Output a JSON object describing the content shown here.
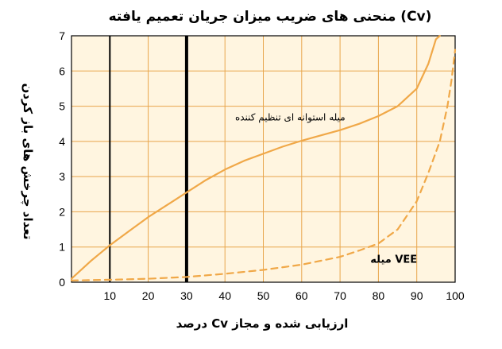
{
  "chart_data": {
    "type": "line",
    "title": "منحنی های ضریب میزان جریان تعمیم یافته (Cv)",
    "xlabel": "درصد Cv ارزیابی شده و مجاز",
    "ylabel": "تعداد چرخش های باز کردن",
    "xlim": [
      0,
      100
    ],
    "ylim": [
      0,
      7
    ],
    "x_ticks": [
      "10",
      "20",
      "30",
      "40",
      "50",
      "60",
      "70",
      "80",
      "90",
      "100"
    ],
    "y_ticks": [
      "0",
      "1",
      "2",
      "3",
      "4",
      "5",
      "6",
      "7"
    ],
    "grid": true,
    "background": "#FFF5E0",
    "grid_color": "#E8A54B",
    "vertical_markers": [
      {
        "x": 10,
        "width": 2
      },
      {
        "x": 30,
        "width": 4
      }
    ],
    "series": [
      {
        "name": "میله استوانه ای تنظیم کننده",
        "style": "solid",
        "color": "#F0A848",
        "points": [
          [
            0,
            0.1
          ],
          [
            2,
            0.3
          ],
          [
            5,
            0.6
          ],
          [
            10,
            1.05
          ],
          [
            15,
            1.45
          ],
          [
            20,
            1.85
          ],
          [
            25,
            2.2
          ],
          [
            30,
            2.55
          ],
          [
            35,
            2.9
          ],
          [
            40,
            3.2
          ],
          [
            45,
            3.45
          ],
          [
            50,
            3.65
          ],
          [
            55,
            3.85
          ],
          [
            60,
            4.02
          ],
          [
            65,
            4.17
          ],
          [
            70,
            4.32
          ],
          [
            75,
            4.5
          ],
          [
            80,
            4.72
          ],
          [
            85,
            5.0
          ],
          [
            90,
            5.5
          ],
          [
            93,
            6.2
          ],
          [
            95,
            6.9
          ],
          [
            96,
            7.0
          ]
        ]
      },
      {
        "name": "میله VEE",
        "style": "dashed",
        "color": "#F0A848",
        "points": [
          [
            0,
            0.05
          ],
          [
            10,
            0.07
          ],
          [
            20,
            0.1
          ],
          [
            30,
            0.15
          ],
          [
            40,
            0.24
          ],
          [
            50,
            0.35
          ],
          [
            60,
            0.5
          ],
          [
            70,
            0.72
          ],
          [
            75,
            0.9
          ],
          [
            80,
            1.1
          ],
          [
            85,
            1.5
          ],
          [
            90,
            2.3
          ],
          [
            93,
            3.1
          ],
          [
            96,
            4.0
          ],
          [
            98,
            5.0
          ],
          [
            99,
            5.7
          ],
          [
            100,
            6.6
          ]
        ]
      }
    ],
    "annotations": [
      {
        "text": "میله استوانه ای تنظیم کننده",
        "x": 57,
        "y": 4.6
      },
      {
        "text": "میله VEE",
        "x": 84,
        "y": 0.55
      }
    ]
  }
}
